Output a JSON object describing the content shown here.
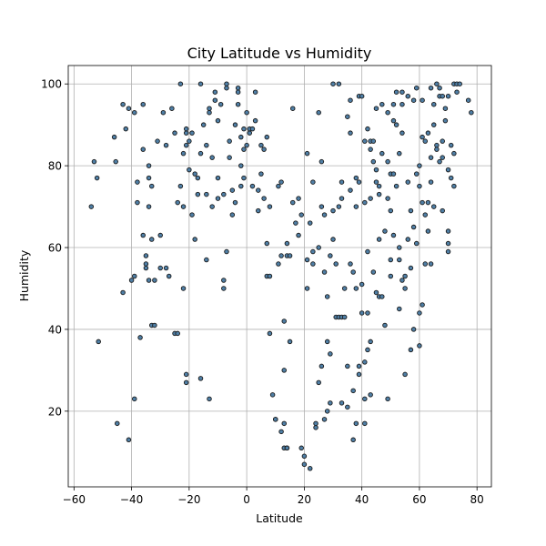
{
  "chart_data": {
    "type": "scatter",
    "title": "City Latitude vs Humidity",
    "xlabel": "Latitude",
    "ylabel": "Humidity",
    "xlim": [
      -62,
      85
    ],
    "ylim": [
      1.5,
      104.5
    ],
    "xticks": [
      -60,
      -40,
      -20,
      0,
      20,
      40,
      60,
      80
    ],
    "yticks": [
      20,
      40,
      60,
      80,
      100
    ],
    "grid": true,
    "marker_color": "#4f7fa6",
    "marker_edge": "#1a1a1a",
    "points": [
      [
        -54,
        70
      ],
      [
        -53,
        81
      ],
      [
        -52,
        77
      ],
      [
        -51.5,
        37
      ],
      [
        -46,
        87
      ],
      [
        -45.5,
        81
      ],
      [
        -45,
        17
      ],
      [
        -43,
        49
      ],
      [
        -43,
        95
      ],
      [
        -42,
        89
      ],
      [
        -41,
        94
      ],
      [
        -41,
        13
      ],
      [
        -40,
        52
      ],
      [
        -39,
        53
      ],
      [
        -39,
        93
      ],
      [
        -39,
        23
      ],
      [
        -38,
        71
      ],
      [
        -38,
        76
      ],
      [
        -37,
        38
      ],
      [
        -36,
        84
      ],
      [
        -36,
        95
      ],
      [
        -36,
        63
      ],
      [
        -35,
        55
      ],
      [
        -35,
        56
      ],
      [
        -35,
        58
      ],
      [
        -34,
        80
      ],
      [
        -34,
        77
      ],
      [
        -34,
        70
      ],
      [
        -34,
        52
      ],
      [
        -33,
        75
      ],
      [
        -33,
        62
      ],
      [
        -33,
        41
      ],
      [
        -32,
        41
      ],
      [
        -32,
        52
      ],
      [
        -31,
        86
      ],
      [
        -30,
        55
      ],
      [
        -30,
        63
      ],
      [
        -29,
        93
      ],
      [
        -28,
        55
      ],
      [
        -28,
        85
      ],
      [
        -27,
        53
      ],
      [
        -26,
        94
      ],
      [
        -25,
        39
      ],
      [
        -25,
        88
      ],
      [
        -24,
        71
      ],
      [
        -24,
        39
      ],
      [
        -23,
        75
      ],
      [
        -23,
        100
      ],
      [
        -22,
        70
      ],
      [
        -22,
        83
      ],
      [
        -22,
        50
      ],
      [
        -21,
        27
      ],
      [
        -21,
        29
      ],
      [
        -21,
        85
      ],
      [
        -21,
        89
      ],
      [
        -21,
        88
      ],
      [
        -20,
        86
      ],
      [
        -20,
        79
      ],
      [
        -19,
        68
      ],
      [
        -19,
        88
      ],
      [
        -18,
        78
      ],
      [
        -18,
        62
      ],
      [
        -17,
        73
      ],
      [
        -17,
        77
      ],
      [
        -16,
        100
      ],
      [
        -16,
        28
      ],
      [
        -16,
        83
      ],
      [
        -15,
        90
      ],
      [
        -14,
        85
      ],
      [
        -14,
        73
      ],
      [
        -14,
        57
      ],
      [
        -13,
        23
      ],
      [
        -13,
        93
      ],
      [
        -13,
        94
      ],
      [
        -12,
        82
      ],
      [
        -12,
        70
      ],
      [
        -11,
        96
      ],
      [
        -11,
        98
      ],
      [
        -10,
        91
      ],
      [
        -10,
        77
      ],
      [
        -10,
        72
      ],
      [
        -9,
        95
      ],
      [
        -8,
        52
      ],
      [
        -8,
        50
      ],
      [
        -8,
        73
      ],
      [
        -7,
        99
      ],
      [
        -7,
        100
      ],
      [
        -7,
        59
      ],
      [
        -6,
        86
      ],
      [
        -6,
        82
      ],
      [
        -5,
        74
      ],
      [
        -5,
        68
      ],
      [
        -4,
        71
      ],
      [
        -4,
        90
      ],
      [
        -3,
        99
      ],
      [
        -3,
        98
      ],
      [
        -3,
        95
      ],
      [
        -2,
        87
      ],
      [
        -2,
        80
      ],
      [
        -2,
        75
      ],
      [
        -1,
        89
      ],
      [
        -1,
        84
      ],
      [
        -1,
        77
      ],
      [
        0,
        85
      ],
      [
        0,
        93
      ],
      [
        1,
        88
      ],
      [
        1,
        89
      ],
      [
        2,
        89
      ],
      [
        2,
        75
      ],
      [
        3,
        98
      ],
      [
        3,
        91
      ],
      [
        4,
        74
      ],
      [
        4,
        69
      ],
      [
        5,
        85
      ],
      [
        5,
        78
      ],
      [
        6,
        84
      ],
      [
        6,
        72
      ],
      [
        7,
        87
      ],
      [
        7,
        53
      ],
      [
        7,
        61
      ],
      [
        8,
        53
      ],
      [
        8,
        39
      ],
      [
        8,
        70
      ],
      [
        9,
        24
      ],
      [
        10,
        18
      ],
      [
        10,
        18
      ],
      [
        11,
        75
      ],
      [
        11,
        56
      ],
      [
        12,
        76
      ],
      [
        12,
        58
      ],
      [
        12,
        15
      ],
      [
        13,
        42
      ],
      [
        13,
        30
      ],
      [
        13,
        17
      ],
      [
        13,
        11
      ],
      [
        14,
        11
      ],
      [
        14,
        11
      ],
      [
        14,
        61
      ],
      [
        14,
        58
      ],
      [
        15,
        37
      ],
      [
        15,
        58
      ],
      [
        16,
        94
      ],
      [
        16,
        71
      ],
      [
        17,
        66
      ],
      [
        18,
        63
      ],
      [
        18,
        72
      ],
      [
        19,
        11
      ],
      [
        19,
        68
      ],
      [
        20,
        9
      ],
      [
        20,
        7
      ],
      [
        21,
        50
      ],
      [
        21,
        83
      ],
      [
        21,
        57
      ],
      [
        22,
        66
      ],
      [
        22,
        6
      ],
      [
        23,
        76
      ],
      [
        23,
        56
      ],
      [
        23,
        59
      ],
      [
        24,
        16
      ],
      [
        24,
        17
      ],
      [
        25,
        60
      ],
      [
        25,
        93
      ],
      [
        25,
        27
      ],
      [
        26,
        31
      ],
      [
        26,
        81
      ],
      [
        26,
        70
      ],
      [
        27,
        54
      ],
      [
        27,
        18
      ],
      [
        27,
        68
      ],
      [
        28,
        37
      ],
      [
        28,
        20
      ],
      [
        28,
        48
      ],
      [
        29,
        22
      ],
      [
        29,
        34
      ],
      [
        29,
        58
      ],
      [
        30,
        62
      ],
      [
        30,
        100
      ],
      [
        30,
        69
      ],
      [
        31,
        56
      ],
      [
        31,
        43
      ],
      [
        32,
        43
      ],
      [
        32,
        70
      ],
      [
        32,
        100
      ],
      [
        33,
        76
      ],
      [
        33,
        72
      ],
      [
        33,
        43
      ],
      [
        33,
        22
      ],
      [
        34,
        50
      ],
      [
        34,
        43
      ],
      [
        35,
        21
      ],
      [
        35,
        31
      ],
      [
        35,
        92
      ],
      [
        36,
        56
      ],
      [
        36,
        74
      ],
      [
        36,
        96
      ],
      [
        36,
        88
      ],
      [
        37,
        54
      ],
      [
        37,
        25
      ],
      [
        37,
        13
      ],
      [
        38,
        50
      ],
      [
        38,
        17
      ],
      [
        38,
        70
      ],
      [
        38,
        77
      ],
      [
        39,
        31
      ],
      [
        39,
        29
      ],
      [
        39,
        76
      ],
      [
        39,
        97
      ],
      [
        40,
        51
      ],
      [
        40,
        44
      ],
      [
        40,
        97
      ],
      [
        41,
        32
      ],
      [
        41,
        23
      ],
      [
        41,
        17
      ],
      [
        41,
        71
      ],
      [
        41,
        86
      ],
      [
        42,
        89
      ],
      [
        42,
        44
      ],
      [
        42,
        35
      ],
      [
        42,
        59
      ],
      [
        43,
        37
      ],
      [
        43,
        24
      ],
      [
        43,
        84
      ],
      [
        43,
        86
      ],
      [
        43,
        72
      ],
      [
        44,
        86
      ],
      [
        44,
        54
      ],
      [
        44,
        81
      ],
      [
        45,
        94
      ],
      [
        45,
        79
      ],
      [
        45,
        76
      ],
      [
        45,
        49
      ],
      [
        46,
        48
      ],
      [
        46,
        73
      ],
      [
        46,
        62
      ],
      [
        46,
        75
      ],
      [
        47,
        48
      ],
      [
        47,
        95
      ],
      [
        47,
        83
      ],
      [
        48,
        64
      ],
      [
        48,
        41
      ],
      [
        49,
        93
      ],
      [
        49,
        81
      ],
      [
        49,
        72
      ],
      [
        49,
        23
      ],
      [
        50,
        57
      ],
      [
        50,
        53
      ],
      [
        50,
        69
      ],
      [
        50,
        78
      ],
      [
        51,
        95
      ],
      [
        51,
        91
      ],
      [
        51,
        63
      ],
      [
        51,
        78
      ],
      [
        52,
        98
      ],
      [
        52,
        75
      ],
      [
        52,
        90
      ],
      [
        53,
        83
      ],
      [
        53,
        57
      ],
      [
        53,
        45
      ],
      [
        53,
        60
      ],
      [
        54,
        52
      ],
      [
        54,
        98
      ],
      [
        54,
        88
      ],
      [
        54,
        95
      ],
      [
        55,
        50
      ],
      [
        55,
        29
      ],
      [
        55,
        53
      ],
      [
        56,
        97
      ],
      [
        56,
        76
      ],
      [
        56,
        62
      ],
      [
        57,
        55
      ],
      [
        57,
        35
      ],
      [
        57,
        69
      ],
      [
        58,
        96
      ],
      [
        58,
        65
      ],
      [
        58,
        40
      ],
      [
        59,
        78
      ],
      [
        59,
        61
      ],
      [
        59,
        99
      ],
      [
        60,
        75
      ],
      [
        60,
        80
      ],
      [
        60,
        36
      ],
      [
        60,
        44
      ],
      [
        61,
        71
      ],
      [
        61,
        87
      ],
      [
        61,
        96
      ],
      [
        61,
        46
      ],
      [
        62,
        86
      ],
      [
        62,
        56
      ],
      [
        62,
        68
      ],
      [
        63,
        64
      ],
      [
        63,
        71
      ],
      [
        63,
        88
      ],
      [
        64,
        56
      ],
      [
        64,
        82
      ],
      [
        64,
        76
      ],
      [
        64,
        99
      ],
      [
        65,
        90
      ],
      [
        65,
        70
      ],
      [
        65,
        95
      ],
      [
        66,
        85
      ],
      [
        66,
        100
      ],
      [
        66,
        84
      ],
      [
        67,
        97
      ],
      [
        67,
        81
      ],
      [
        67,
        99
      ],
      [
        68,
        97
      ],
      [
        68,
        86
      ],
      [
        68,
        82
      ],
      [
        68,
        69
      ],
      [
        69,
        91
      ],
      [
        69,
        94
      ],
      [
        70,
        61
      ],
      [
        70,
        64
      ],
      [
        70,
        59
      ],
      [
        70,
        79
      ],
      [
        70,
        97
      ],
      [
        71,
        85
      ],
      [
        71,
        77
      ],
      [
        72,
        83
      ],
      [
        72,
        75
      ],
      [
        72,
        100
      ],
      [
        73,
        98
      ],
      [
        73,
        100
      ],
      [
        74,
        100
      ],
      [
        77,
        96
      ],
      [
        78,
        93
      ]
    ]
  }
}
